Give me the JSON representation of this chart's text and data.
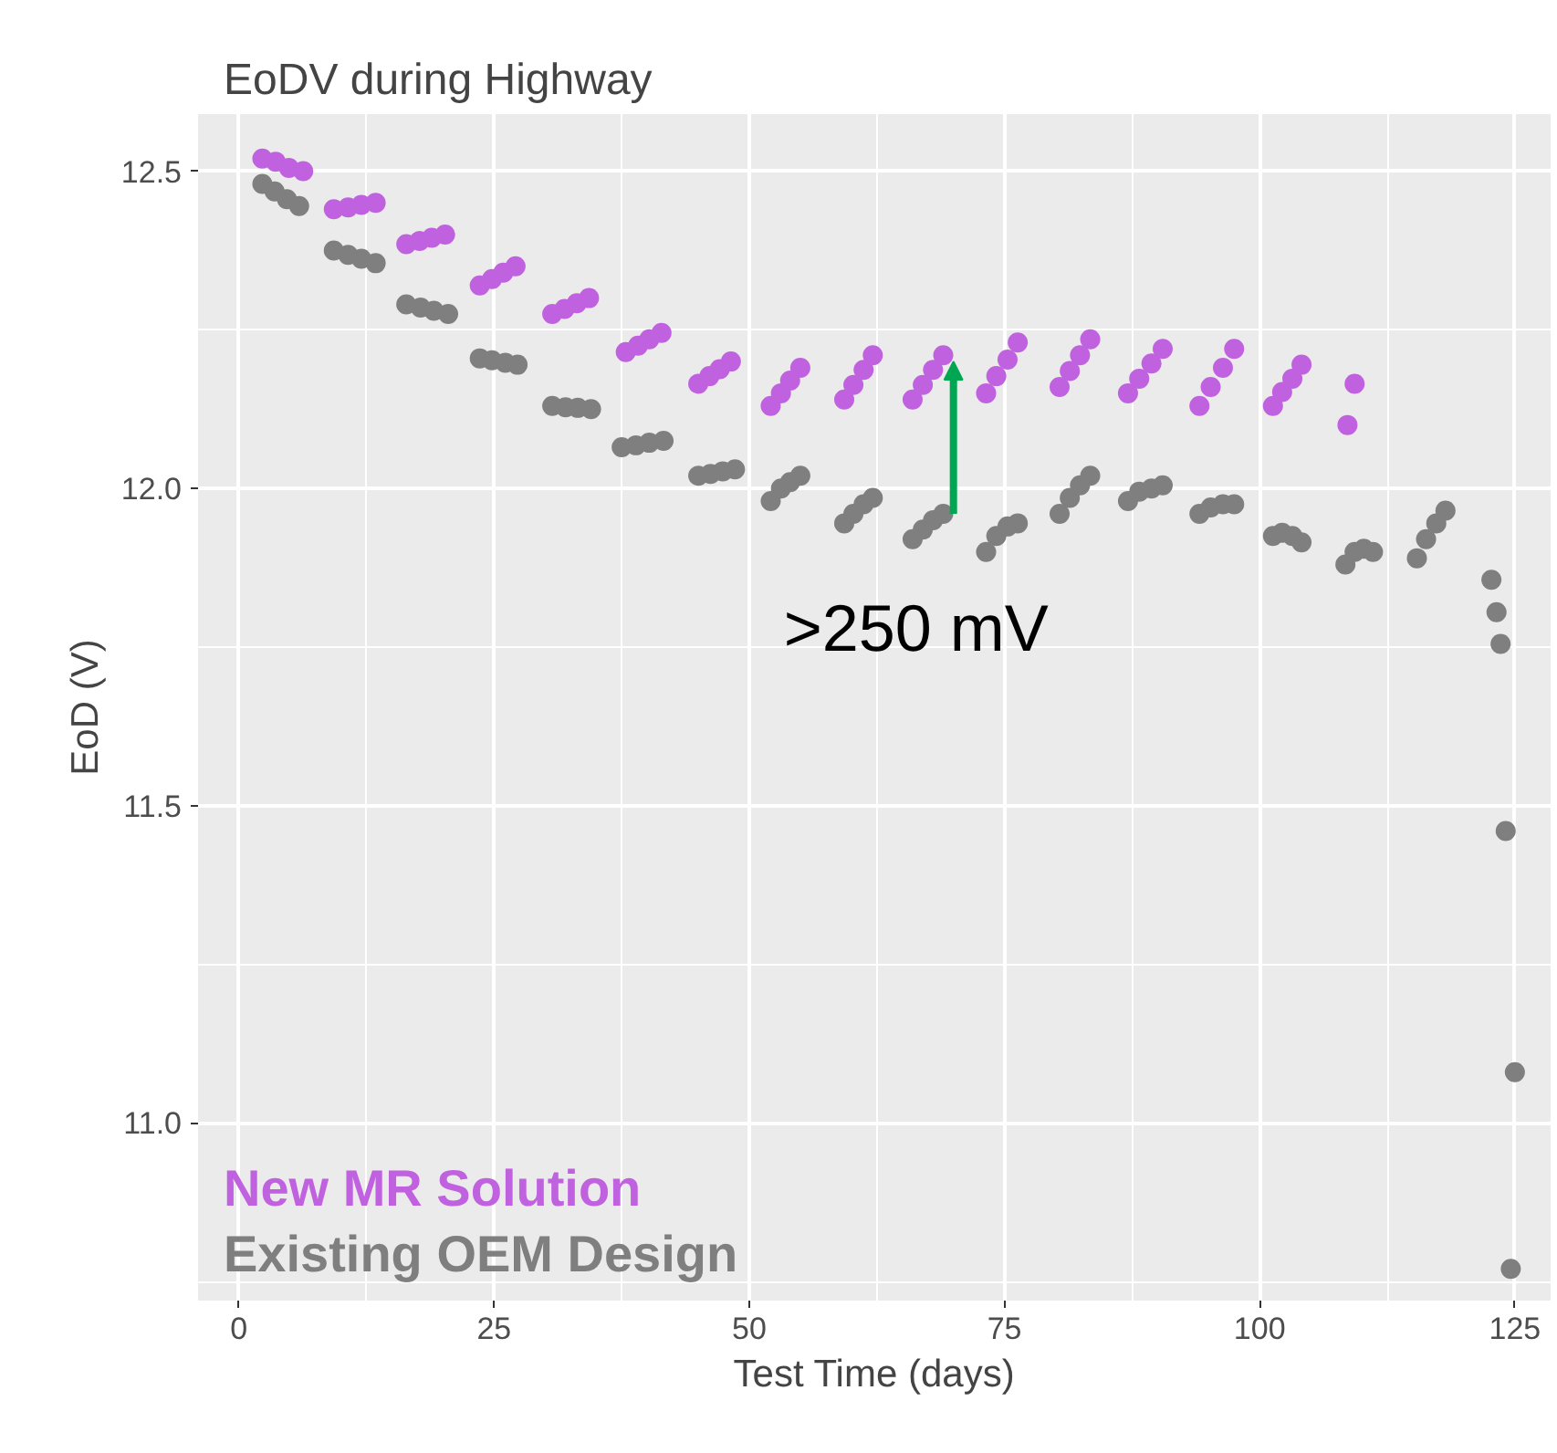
{
  "chart_data": {
    "type": "scatter",
    "title": "EoDV during Highway",
    "xlabel": "Test Time (days)",
    "ylabel": "EoD (V)",
    "xlim": [
      -4,
      128.5
    ],
    "ylim": [
      10.72,
      12.59
    ],
    "xticks": [
      0,
      25,
      50,
      75,
      100,
      125
    ],
    "yticks": [
      {
        "value": 11,
        "label": "11.0"
      },
      11.5,
      {
        "value": 12,
        "label": "12.0"
      },
      12.5
    ],
    "grid": true,
    "legend": "bottom left",
    "marker": "circle",
    "annotations": [
      {
        "text": ">250 mV",
        "x": 70,
        "y": 12.2
      }
    ],
    "series": [
      {
        "name": "New MR Solution",
        "color": "#c062e0",
        "x": [
          2.3,
          3.6,
          4.9,
          6.3,
          9.3,
          10.7,
          12.0,
          13.4,
          16.4,
          17.7,
          18.9,
          20.2,
          23.6,
          24.8,
          25.9,
          27.1,
          30.7,
          31.9,
          33.1,
          34.3,
          37.9,
          39.1,
          40.2,
          41.4,
          45,
          46.1,
          47.1,
          48.2,
          52.1,
          53.1,
          54,
          55,
          59.3,
          60.2,
          61.2,
          62.1,
          66,
          67,
          68,
          69,
          73.2,
          74.2,
          75.3,
          76.3,
          80.4,
          81.4,
          82.4,
          83.4,
          87.1,
          88.2,
          89.4,
          90.5,
          94.1,
          95.2,
          96.4,
          97.5,
          101.3,
          102.2,
          103.2,
          104.1,
          108.6,
          109.3
        ],
        "values": [
          12.52,
          12.515,
          12.505,
          12.5,
          12.44,
          12.443,
          12.447,
          12.45,
          12.385,
          12.39,
          12.395,
          12.4,
          12.32,
          12.33,
          12.34,
          12.35,
          12.275,
          12.283,
          12.292,
          12.3,
          12.215,
          12.225,
          12.235,
          12.245,
          12.165,
          12.177,
          12.188,
          12.2,
          12.13,
          12.15,
          12.17,
          12.19,
          12.14,
          12.163,
          12.187,
          12.21,
          12.14,
          12.163,
          12.187,
          12.21,
          12.15,
          12.177,
          12.203,
          12.23,
          12.16,
          12.185,
          12.21,
          12.235,
          12.15,
          12.173,
          12.197,
          12.22,
          12.13,
          12.16,
          12.19,
          12.22,
          12.13,
          12.152,
          12.173,
          12.195,
          12.1,
          12.165
        ]
      },
      {
        "name": "Existing OEM Design",
        "color": "#7f7f7f",
        "x": [
          2.3,
          3.5,
          4.7,
          5.9,
          9.3,
          10.7,
          12.0,
          13.4,
          16.4,
          17.8,
          19.1,
          20.5,
          23.6,
          24.8,
          26.1,
          27.3,
          30.7,
          32.0,
          33.2,
          34.5,
          37.5,
          38.9,
          40.2,
          41.6,
          45,
          46.2,
          47.4,
          48.6,
          52.1,
          53.1,
          54,
          55,
          59.3,
          60.2,
          61.2,
          62.1,
          66,
          67,
          68,
          69,
          73.2,
          74.2,
          75.3,
          76.3,
          80.4,
          81.4,
          82.4,
          83.4,
          87.1,
          88.2,
          89.4,
          90.5,
          94.1,
          95.2,
          96.4,
          97.5,
          101.3,
          102.2,
          103.2,
          104.1,
          108.4,
          109.3,
          110.2,
          111.1,
          115.4,
          116.3,
          117.3,
          118.2,
          122.7,
          123.2,
          123.6,
          124.1,
          125,
          124.6
        ],
        "values": [
          12.48,
          12.468,
          12.456,
          12.445,
          12.375,
          12.368,
          12.362,
          12.355,
          12.29,
          12.285,
          12.28,
          12.275,
          12.205,
          12.202,
          12.198,
          12.195,
          12.13,
          12.128,
          12.127,
          12.125,
          12.065,
          12.068,
          12.072,
          12.075,
          12.02,
          12.023,
          12.027,
          12.03,
          11.98,
          12.0,
          12.01,
          12.02,
          11.945,
          11.96,
          11.975,
          11.985,
          11.92,
          11.935,
          11.95,
          11.96,
          11.9,
          11.925,
          11.94,
          11.945,
          11.96,
          11.985,
          12.005,
          12.02,
          11.98,
          11.995,
          12.0,
          12.005,
          11.96,
          11.97,
          11.975,
          11.975,
          11.925,
          11.93,
          11.925,
          11.915,
          11.88,
          11.9,
          11.905,
          11.9,
          11.89,
          11.92,
          11.945,
          11.965,
          11.856,
          11.805,
          11.755,
          11.46,
          11.08,
          10.77
        ]
      }
    ]
  }
}
